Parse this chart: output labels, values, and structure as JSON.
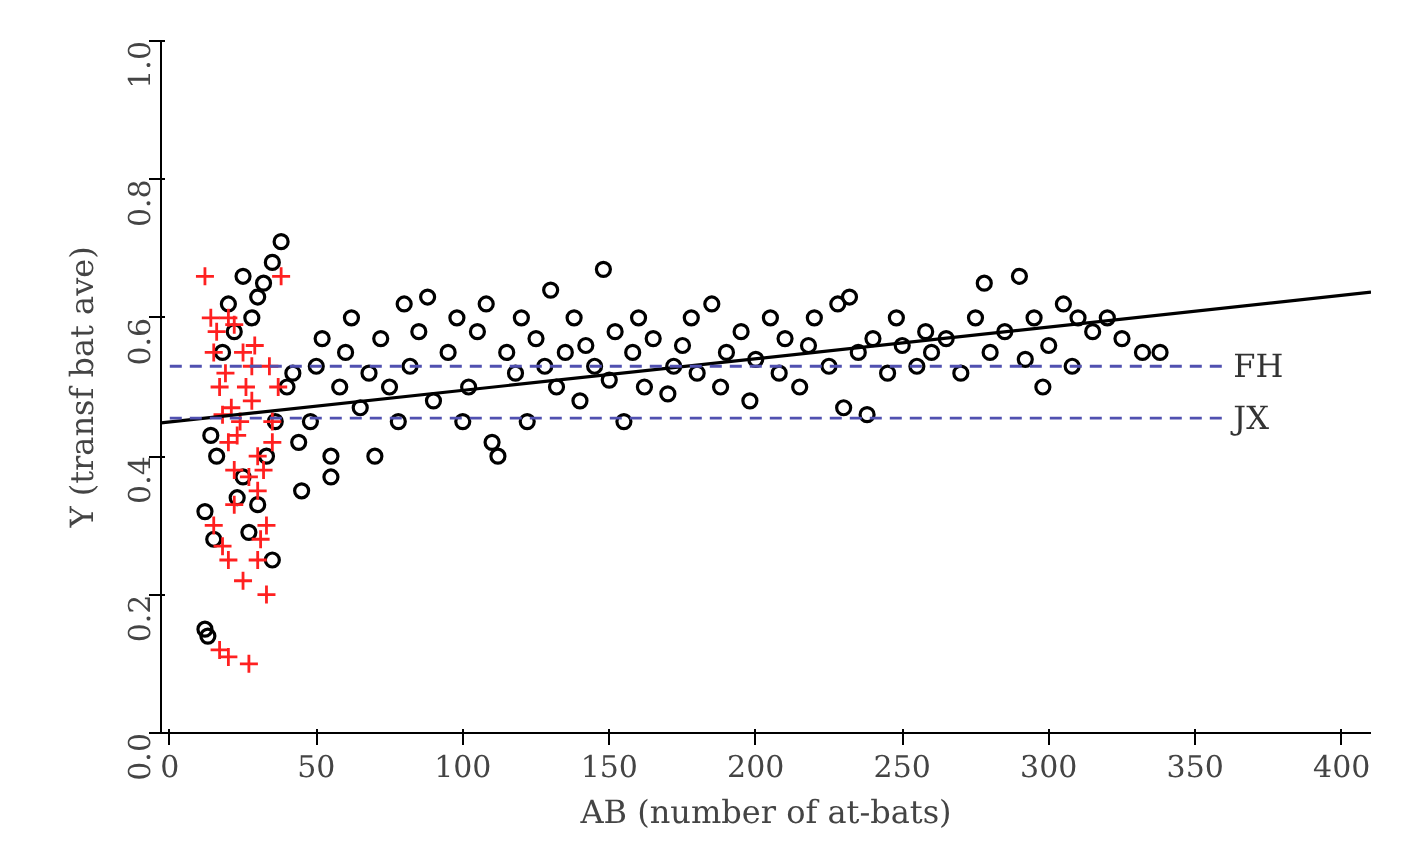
{
  "chart_data": {
    "type": "scatter",
    "xlabel": "AB (number of at-bats)",
    "ylabel": "Y (transf bat ave)",
    "xlim": [
      -3,
      410
    ],
    "ylim": [
      0,
      1
    ],
    "xticks": [
      0,
      50,
      100,
      150,
      200,
      250,
      300,
      350,
      400
    ],
    "yticks": [
      {
        "value": 0,
        "label": "0.0"
      },
      0.2,
      0.4,
      0.6,
      0.8,
      {
        "value": 1,
        "label": "1.0"
      }
    ],
    "grid": false,
    "series": [
      {
        "color": "#000000",
        "marker": "circle",
        "x": [
          12,
          13,
          12,
          15,
          14,
          16,
          18,
          20,
          22,
          25,
          28,
          30,
          32,
          35,
          38,
          35,
          30,
          25,
          27,
          23,
          33,
          36,
          40,
          42,
          44,
          45,
          48,
          50,
          52,
          55,
          55,
          58,
          60,
          62,
          65,
          68,
          70,
          72,
          75,
          78,
          80,
          82,
          85,
          88,
          90,
          95,
          98,
          100,
          102,
          105,
          108,
          110,
          112,
          115,
          118,
          120,
          122,
          125,
          128,
          130,
          132,
          135,
          138,
          140,
          142,
          145,
          148,
          150,
          152,
          155,
          158,
          160,
          162,
          165,
          170,
          172,
          175,
          178,
          180,
          185,
          188,
          190,
          195,
          198,
          200,
          205,
          208,
          210,
          215,
          218,
          220,
          225,
          228,
          230,
          232,
          235,
          238,
          240,
          245,
          248,
          250,
          255,
          258,
          260,
          265,
          270,
          275,
          278,
          280,
          285,
          290,
          292,
          295,
          298,
          300,
          305,
          308,
          310,
          315,
          320,
          325,
          332,
          338
        ],
        "values": [
          0.15,
          0.14,
          0.32,
          0.28,
          0.43,
          0.4,
          0.55,
          0.62,
          0.58,
          0.66,
          0.6,
          0.63,
          0.65,
          0.68,
          0.71,
          0.25,
          0.33,
          0.37,
          0.29,
          0.34,
          0.4,
          0.45,
          0.5,
          0.52,
          0.42,
          0.35,
          0.45,
          0.53,
          0.57,
          0.4,
          0.37,
          0.5,
          0.55,
          0.6,
          0.47,
          0.52,
          0.4,
          0.57,
          0.5,
          0.45,
          0.62,
          0.53,
          0.58,
          0.63,
          0.48,
          0.55,
          0.6,
          0.45,
          0.5,
          0.58,
          0.62,
          0.42,
          0.4,
          0.55,
          0.52,
          0.6,
          0.45,
          0.57,
          0.53,
          0.64,
          0.5,
          0.55,
          0.6,
          0.48,
          0.56,
          0.53,
          0.67,
          0.51,
          0.58,
          0.45,
          0.55,
          0.6,
          0.5,
          0.57,
          0.49,
          0.53,
          0.56,
          0.6,
          0.52,
          0.62,
          0.5,
          0.55,
          0.58,
          0.48,
          0.54,
          0.6,
          0.52,
          0.57,
          0.5,
          0.56,
          0.6,
          0.53,
          0.62,
          0.47,
          0.63,
          0.55,
          0.46,
          0.57,
          0.52,
          0.6,
          0.56,
          0.53,
          0.58,
          0.55,
          0.57,
          0.52,
          0.6,
          0.65,
          0.55,
          0.58,
          0.66,
          0.54,
          0.6,
          0.5,
          0.56,
          0.62,
          0.53,
          0.6,
          0.58,
          0.6,
          0.57,
          0.55,
          0.55
        ]
      },
      {
        "color": "#ff2020",
        "marker": "cross",
        "x": [
          12,
          14,
          15,
          17,
          18,
          20,
          22,
          15,
          18,
          20,
          17,
          20,
          27,
          33,
          30,
          25,
          22,
          24,
          26,
          28,
          30,
          32,
          35,
          37,
          38,
          20,
          22,
          25,
          28,
          30,
          33,
          19,
          23,
          27,
          31,
          35,
          16,
          21,
          29,
          34
        ],
        "values": [
          0.66,
          0.6,
          0.55,
          0.5,
          0.46,
          0.42,
          0.38,
          0.3,
          0.27,
          0.25,
          0.12,
          0.11,
          0.1,
          0.2,
          0.25,
          0.22,
          0.33,
          0.45,
          0.5,
          0.48,
          0.4,
          0.38,
          0.45,
          0.5,
          0.66,
          0.6,
          0.59,
          0.55,
          0.53,
          0.35,
          0.3,
          0.52,
          0.43,
          0.37,
          0.28,
          0.42,
          0.58,
          0.47,
          0.56,
          0.53
        ]
      },
      {
        "type": "line",
        "color": "#000000",
        "x": [
          -3,
          410
        ],
        "values": [
          0.448,
          0.637
        ]
      }
    ],
    "ref_lines": [
      {
        "axis": "y",
        "value": 0.53,
        "label": "FH",
        "color": "#5050b0",
        "line_style": "dashed"
      },
      {
        "axis": "y",
        "value": 0.455,
        "label": "JX",
        "color": "#5050b0",
        "line_style": "dashed"
      }
    ]
  }
}
